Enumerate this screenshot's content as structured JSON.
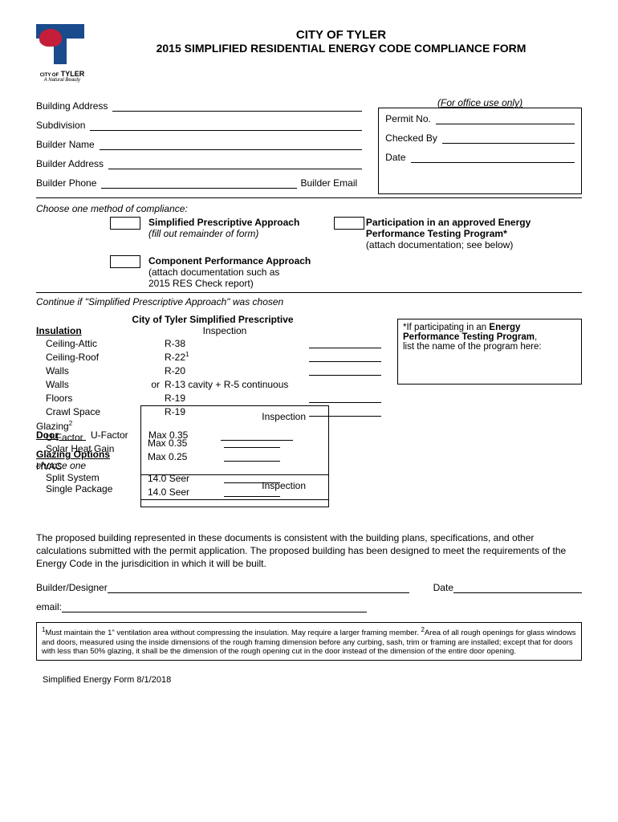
{
  "header": {
    "city": "CITY OF TYLER",
    "formTitle": "2015 SIMPLIFIED RESIDENTIAL ENERGY CODE COMPLIANCE FORM",
    "logoText": "TYLER",
    "logoSub": "A Natural Beauty",
    "logoCityOf": "CITY OF"
  },
  "fields": {
    "buildingAddress": "Building Address",
    "subdivision": "Subdivision",
    "builderName": "Builder Name",
    "builderAddress": "Builder Address",
    "builderPhone": "Builder Phone",
    "builderEmail": "Builder Email",
    "officeOnly": "(For office use only)",
    "permitNo": "Permit No.",
    "checkedBy": "Checked By",
    "date": "Date"
  },
  "methods": {
    "heading": "Choose one method of compliance:",
    "simplified": "Simplified Prescriptive Approach",
    "simplifiedNote": "(fill out remainder of form)",
    "component": "Component Performance Approach",
    "componentNote1": "(attach documentation such as",
    "componentNote2": "2015 RES Check report)",
    "participation1": "Participation in an approved Energy",
    "participation2": "Performance Testing Program*",
    "participationNote": "(attach documentation; see below)"
  },
  "continue": "Continue if \"Simplified Prescriptive Approach\" was chosen",
  "prescriptive": {
    "title": "City of Tyler Simplified Prescriptive",
    "subtitle": "Inspection",
    "insulation": "Insulation",
    "rows": [
      {
        "label": "Ceiling-Attic",
        "val": "R-38"
      },
      {
        "label": "Ceiling-Roof",
        "val": "R-22",
        "sup": "1"
      },
      {
        "label": "Walls",
        "val": "R-20"
      },
      {
        "label": "Walls",
        "or": "or",
        "val": "R-13 cavity + R-5 continuous",
        "noline": true
      },
      {
        "label": "Floors",
        "val": "R-19"
      },
      {
        "label": "Crawl Space",
        "val": "R-19"
      }
    ],
    "door": "Door",
    "uFactor": "U-Factor",
    "doorMax": "Max 0.35",
    "glazingOptions": "Glazing Options",
    "chooseOne": "choose one",
    "inspection2": "Inspection",
    "glazing": "Glazing",
    "glazingSup": "2",
    "uFactor2": "U-Factor",
    "uFactorVal": "Max 0.35",
    "shg": "Solar Heat Gain",
    "shgVal": "Max 0.25",
    "hvac": "HVAC",
    "split": "Split System",
    "splitVal": "14.0 Seer",
    "single": "Single Package",
    "singleVal": "14.0 Seer"
  },
  "energyBox": {
    "line1a": "*If participating in an ",
    "line1b": "Energy",
    "line2": "Performance Testing Program",
    "line3": "list the name of the program here:"
  },
  "statement": "The proposed building represented in these documents is consistent with the building plans, specifications, and other calculations submitted with the permit application.  The proposed building has been designed to meet the requirements of the Energy Code in the jurisdicition in which it will be built.",
  "signature": {
    "builderDesigner": "Builder/Designer",
    "date": "Date",
    "email": "email:"
  },
  "footnote": {
    "sup1": "1",
    "text1": "Must maintain the 1\" ventilation area without compressing the insulation.  May require a larger framing member. ",
    "sup2": "2",
    "text2": "Area of all rough openings for glass windows and doors, measured using the inside dimensions of the rough framing dimension before any curbing, sash, trim or framing are installed; except that for doors with less than 50% glazing, it shall be the dimension of the rough opening cut in the door instead of the dimension of the entire door opening."
  },
  "footer": "Simplified Energy Form 8/1/2018"
}
